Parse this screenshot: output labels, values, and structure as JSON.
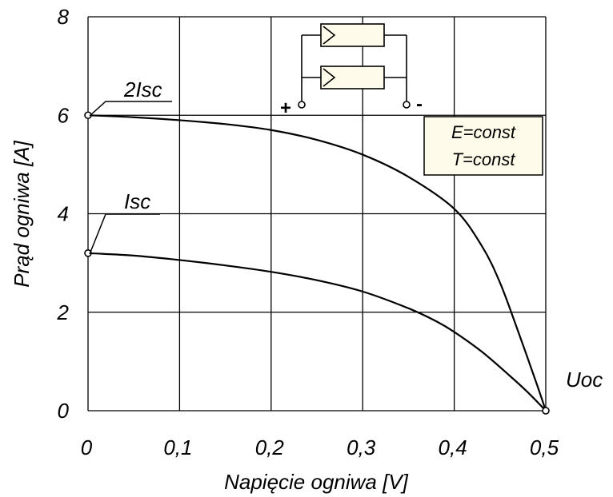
{
  "chart_data": {
    "type": "line",
    "xlabel": "Napięcie ogniwa [V]",
    "ylabel": "Prąd ogniwa [A]",
    "xlim": [
      0,
      0.5
    ],
    "ylim": [
      0,
      8
    ],
    "x_ticks": [
      "0",
      "0,1",
      "0,2",
      "0,3",
      "0,4",
      "0,5"
    ],
    "y_ticks": [
      "0",
      "2",
      "4",
      "6",
      "8"
    ],
    "grid": true,
    "series": [
      {
        "name": "2Isc",
        "x": [
          0,
          0.05,
          0.1,
          0.15,
          0.2,
          0.25,
          0.3,
          0.35,
          0.4,
          0.43,
          0.45,
          0.47,
          0.49,
          0.5
        ],
        "values": [
          6.0,
          5.96,
          5.9,
          5.82,
          5.7,
          5.5,
          5.2,
          4.75,
          4.1,
          3.35,
          2.6,
          1.6,
          0.55,
          0
        ]
      },
      {
        "name": "Isc",
        "x": [
          0,
          0.05,
          0.1,
          0.15,
          0.2,
          0.25,
          0.3,
          0.35,
          0.38,
          0.4,
          0.43,
          0.46,
          0.48,
          0.5
        ],
        "values": [
          3.2,
          3.15,
          3.06,
          2.95,
          2.82,
          2.65,
          2.42,
          2.08,
          1.82,
          1.6,
          1.2,
          0.72,
          0.38,
          0
        ]
      }
    ],
    "annotations": {
      "two_isc": "2Isc",
      "isc": "Isc",
      "uoc": "Uoc",
      "conditions": [
        "E=const",
        "T=const"
      ],
      "plus": "+",
      "minus": "-"
    }
  }
}
